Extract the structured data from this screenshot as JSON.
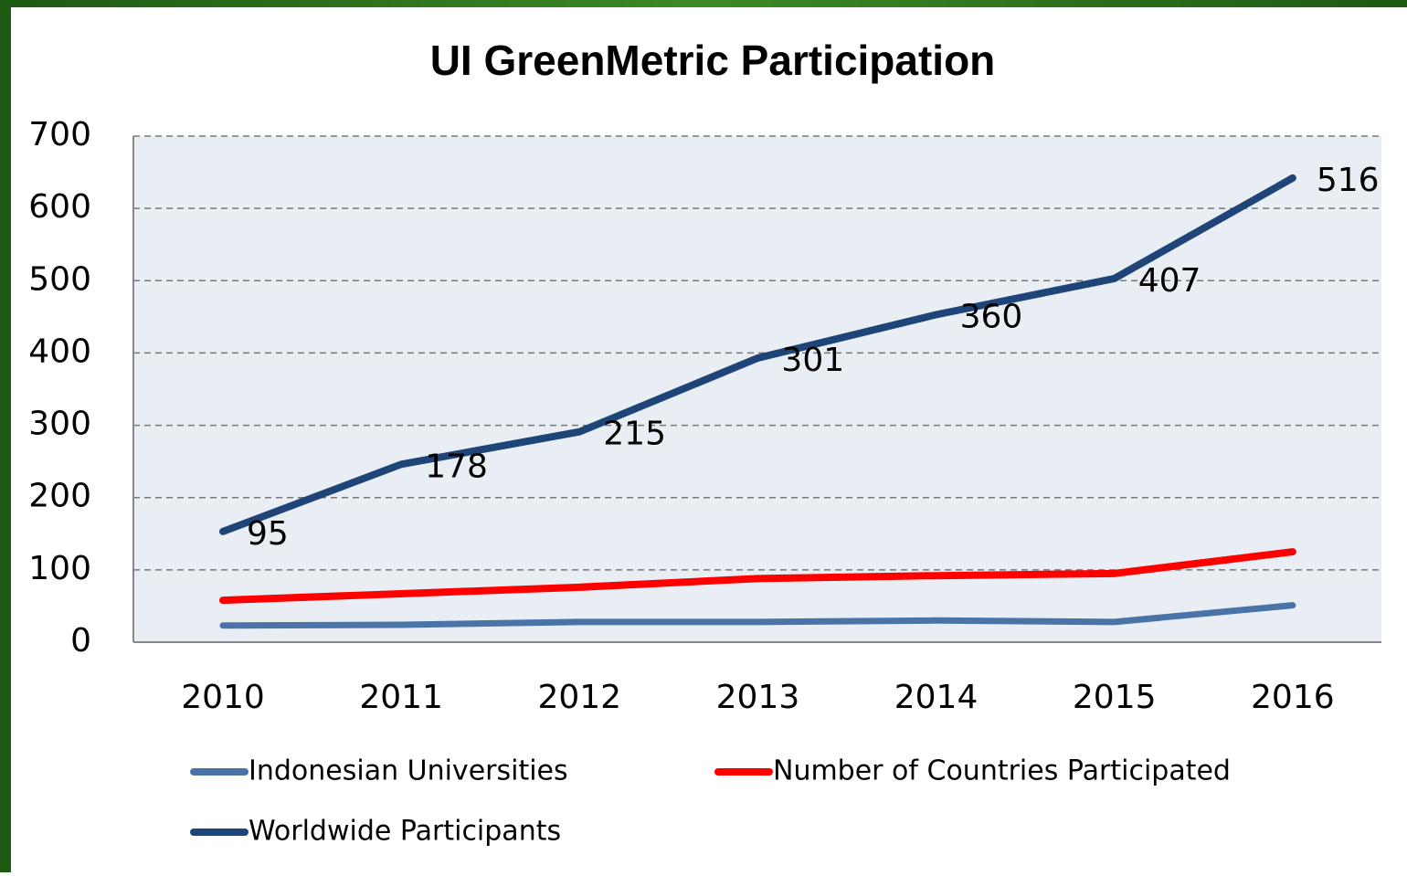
{
  "chart_data": {
    "type": "line",
    "title": "UI GreenMetric Participation",
    "categories": [
      "2010",
      "2011",
      "2012",
      "2013",
      "2014",
      "2015",
      "2016"
    ],
    "series": [
      {
        "name": "Indonesian Universities",
        "color": "#4a74a8",
        "values": [
          23,
          24,
          28,
          28,
          30,
          28,
          51
        ]
      },
      {
        "name": "Number of Countries Participated",
        "color": "#ff0000",
        "values": [
          58,
          67,
          76,
          88,
          92,
          95,
          125
        ]
      },
      {
        "name": "Worldwide Participants",
        "color": "#1f4477",
        "values": [
          153,
          246,
          291,
          393,
          453,
          503,
          642
        ]
      }
    ],
    "annotations": [
      "95",
      "178",
      "215",
      "301",
      "360",
      "407",
      "516"
    ],
    "ylim": [
      0,
      700
    ],
    "yticks": [
      0,
      100,
      200,
      300,
      400,
      500,
      600,
      700
    ],
    "grid": true,
    "legend": "bottom"
  }
}
